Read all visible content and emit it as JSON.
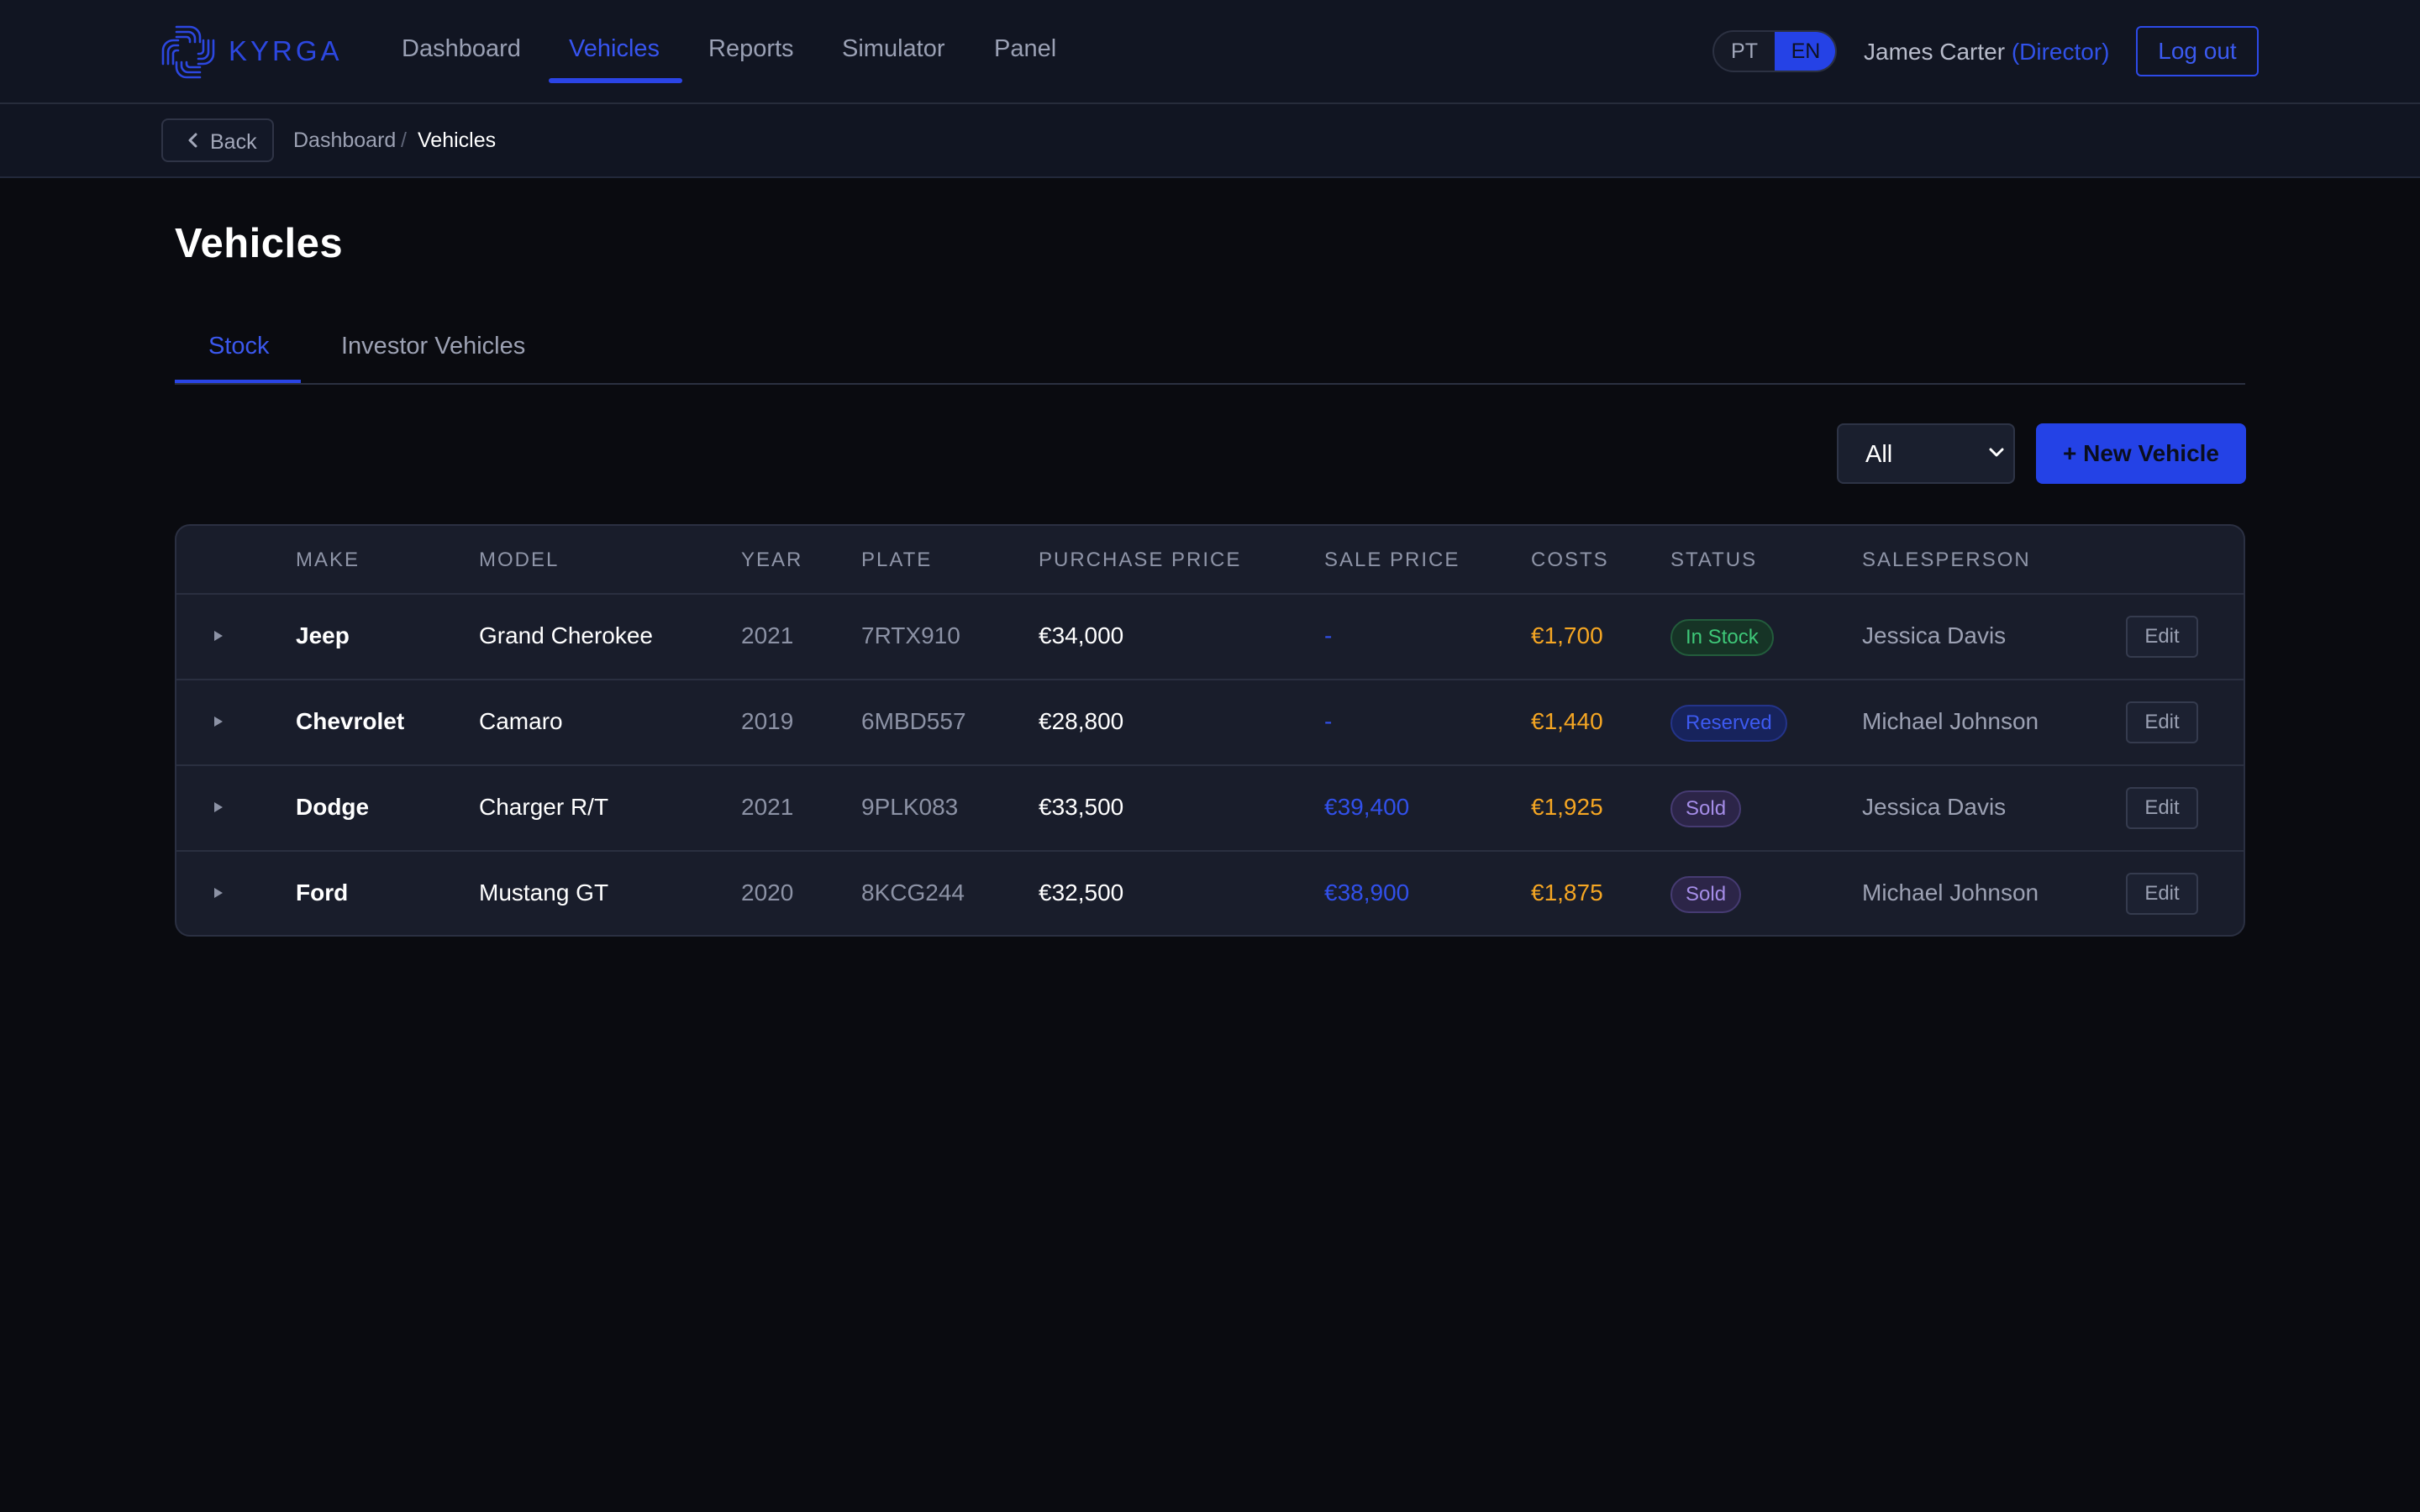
{
  "app": {
    "brand": "KYRGA",
    "logo_icon": "kyrga-logo-icon",
    "accent": "#2542e6"
  },
  "nav": {
    "items": [
      {
        "label": "Dashboard",
        "active": false
      },
      {
        "label": "Vehicles",
        "active": true
      },
      {
        "label": "Reports",
        "active": false
      },
      {
        "label": "Simulator",
        "active": false
      },
      {
        "label": "Panel",
        "active": false
      }
    ]
  },
  "lang": {
    "pt": "PT",
    "en": "EN",
    "selected": "EN"
  },
  "user": {
    "name": "James Carter",
    "role": "(Director)",
    "logout": "Log out"
  },
  "breadcrumb": {
    "back": "Back",
    "back_icon": "chevron-left-icon",
    "parent": "Dashboard",
    "separator": "/",
    "current": "Vehicles"
  },
  "page": {
    "title": "Vehicles",
    "tabs": [
      {
        "label": "Stock",
        "active": true
      },
      {
        "label": "Investor Vehicles",
        "active": false
      }
    ],
    "filter": {
      "value": "All"
    },
    "new_button": "+ New Vehicle"
  },
  "table": {
    "columns": [
      "MAKE",
      "MODEL",
      "YEAR",
      "PLATE",
      "PURCHASE PRICE",
      "SALE PRICE",
      "COSTS",
      "STATUS",
      "SALESPERSON"
    ],
    "edit_label": "Edit",
    "rows": [
      {
        "make": "Jeep",
        "model": "Grand Cherokee",
        "year": "2021",
        "plate": "7RTX910",
        "purchase": "€34,000",
        "sale": "-",
        "costs": "€1,700",
        "status": "In Stock",
        "salesperson": "Jessica Davis"
      },
      {
        "make": "Chevrolet",
        "model": "Camaro",
        "year": "2019",
        "plate": "6MBD557",
        "purchase": "€28,800",
        "sale": "-",
        "costs": "€1,440",
        "status": "Reserved",
        "salesperson": "Michael Johnson"
      },
      {
        "make": "Dodge",
        "model": "Charger R/T",
        "year": "2021",
        "plate": "9PLK083",
        "purchase": "€33,500",
        "sale": "€39,400",
        "costs": "€1,925",
        "status": "Sold",
        "salesperson": "Jessica Davis"
      },
      {
        "make": "Ford",
        "model": "Mustang GT",
        "year": "2020",
        "plate": "8KCG244",
        "purchase": "€32,500",
        "sale": "€38,900",
        "costs": "€1,875",
        "status": "Sold",
        "salesperson": "Michael Johnson"
      }
    ]
  }
}
